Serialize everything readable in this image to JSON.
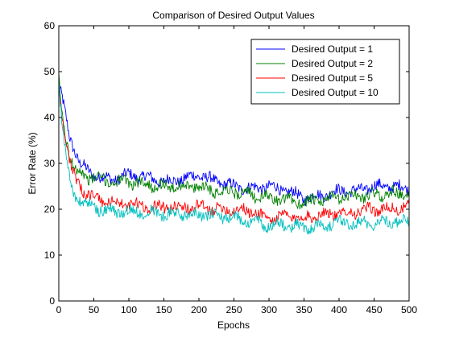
{
  "chart_data": {
    "type": "line",
    "title": "Comparison of Desired Output Values",
    "xlabel": "Epochs",
    "ylabel": "Error Rate (%)",
    "xlim": [
      0,
      500
    ],
    "ylim": [
      0,
      60
    ],
    "xticks": [
      0,
      50,
      100,
      150,
      200,
      250,
      300,
      350,
      400,
      450,
      500
    ],
    "yticks": [
      0,
      10,
      20,
      30,
      40,
      50,
      60
    ],
    "grid": false,
    "legend_position": "top-right",
    "x": [
      0,
      5,
      10,
      15,
      20,
      25,
      30,
      40,
      50,
      60,
      75,
      100,
      125,
      150,
      175,
      200,
      225,
      250,
      275,
      300,
      325,
      350,
      375,
      400,
      425,
      450,
      475,
      500
    ],
    "series": [
      {
        "name": "Desired Output = 1",
        "color": "#0000ff",
        "values": [
          47,
          44,
          40,
          36,
          34,
          32,
          30,
          28.5,
          27.5,
          27,
          26.5,
          27.5,
          27,
          26,
          26.5,
          27.5,
          26,
          25,
          24.5,
          25,
          24,
          22.5,
          23,
          24,
          24,
          25,
          25,
          24.5
        ]
      },
      {
        "name": "Desired Output = 2",
        "color": "#008000",
        "values": [
          48,
          40,
          36,
          32,
          30,
          28.5,
          28,
          27,
          27,
          26.5,
          26,
          26,
          25.5,
          25,
          25,
          25,
          24,
          24,
          23,
          22.5,
          22,
          21.5,
          22,
          22.5,
          23,
          23,
          23.5,
          23
        ]
      },
      {
        "name": "Desired Output = 5",
        "color": "#ff0000",
        "values": [
          48,
          40,
          35,
          31,
          28,
          26,
          25,
          23.5,
          22.5,
          22,
          21.5,
          21,
          20.5,
          20.5,
          20.5,
          20.5,
          20,
          20,
          19.5,
          18,
          18.5,
          18,
          19,
          19,
          19.5,
          20,
          20,
          20.5
        ]
      },
      {
        "name": "Desired Output = 10",
        "color": "#00bfbf",
        "values": [
          48,
          38,
          32,
          27,
          24,
          22.5,
          22,
          21,
          20.5,
          20,
          19.5,
          19.5,
          19.5,
          19,
          19,
          19,
          18.5,
          18,
          17.5,
          16.5,
          16.5,
          16,
          16.5,
          17,
          17,
          17,
          17.5,
          17
        ]
      }
    ]
  }
}
